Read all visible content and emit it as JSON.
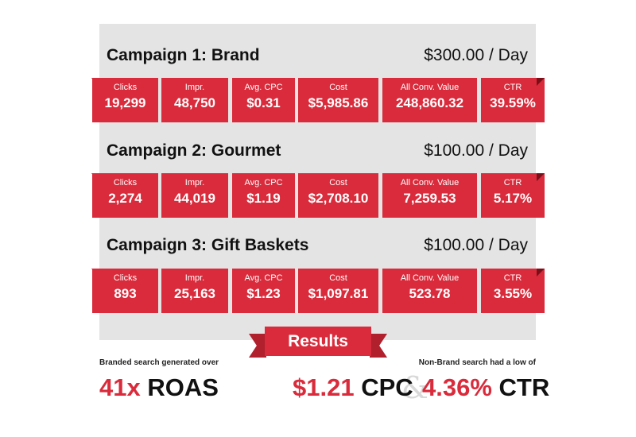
{
  "columns": [
    "Clicks",
    "Impr.",
    "Avg. CPC",
    "Cost",
    "All Conv. Value",
    "CTR"
  ],
  "campaigns": [
    {
      "title": "Campaign 1: Brand",
      "budget": "$300.00 / Day",
      "values": [
        "19,299",
        "48,750",
        "$0.31",
        "$5,985.86",
        "248,860.32",
        "39.59%"
      ]
    },
    {
      "title": "Campaign 2: Gourmet",
      "budget": "$100.00 / Day",
      "values": [
        "2,274",
        "44,019",
        "$1.19",
        "$2,708.10",
        "7,259.53",
        "5.17%"
      ]
    },
    {
      "title": "Campaign 3: Gift Baskets",
      "budget": "$100.00 / Day",
      "values": [
        "893",
        "25,163",
        "$1.23",
        "$1,097.81",
        "523.78",
        "3.55%"
      ]
    }
  ],
  "results": {
    "tab_label": "Results",
    "left": {
      "caption": "Branded search generated over",
      "value": "41x",
      "unit": "ROAS"
    },
    "right": {
      "caption": "Non-Brand search had a low of",
      "cpc_value": "$1.21",
      "cpc_unit": "CPC",
      "ampersand": "&",
      "ctr_value": "4.36%",
      "ctr_unit": "CTR"
    }
  },
  "colors": {
    "accent": "#d92b3b",
    "panel": "#e4e4e4",
    "fold": "#7a0f18"
  }
}
